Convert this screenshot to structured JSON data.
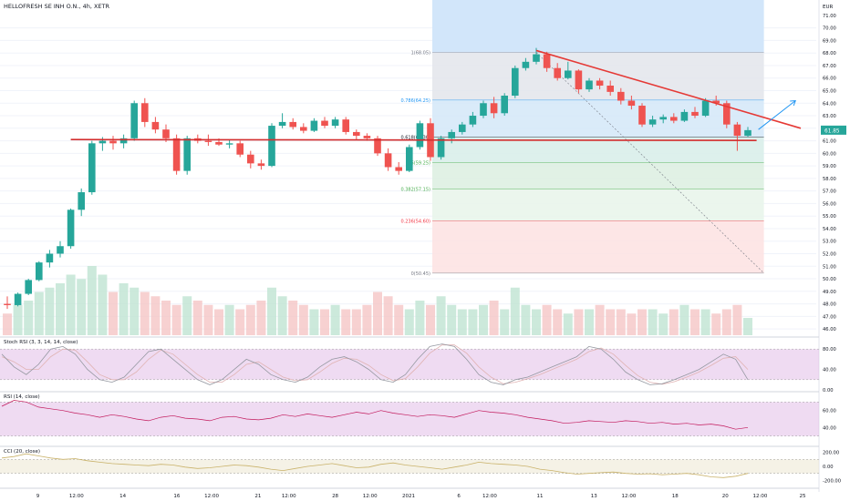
{
  "header": {
    "symbol_title": "HELLOFRESH SE INH O.N., 4h, XETR",
    "currency": "EUR"
  },
  "price_axis": {
    "labels": [
      "71.00",
      "70.00",
      "69.00",
      "68.00",
      "67.00",
      "66.00",
      "65.00",
      "64.00",
      "63.00",
      "62.00",
      "61.00",
      "60.00",
      "59.00",
      "58.00",
      "57.00",
      "56.00",
      "55.00",
      "54.00",
      "53.00",
      "52.00",
      "51.00",
      "50.00",
      "49.00",
      "48.00",
      "47.00",
      "46.00"
    ],
    "current_price": "61.85"
  },
  "fibonacci": {
    "levels": [
      {
        "label": "1(68.05)",
        "price": 68.05,
        "color": "#787b86"
      },
      {
        "label": "0.786(64.25)",
        "price": 64.25,
        "color": "#2196f3"
      },
      {
        "label": "0.618(61.30)",
        "price": 61.3,
        "color": "#131722"
      },
      {
        "label": "0.5(59.25)",
        "price": 59.25,
        "color": "#4caf50"
      },
      {
        "label": "0.382(57.15)",
        "price": 57.15,
        "color": "#4caf50"
      },
      {
        "label": "0.236(54.60)",
        "price": 54.6,
        "color": "#f23645"
      },
      {
        "label": "0(50.45)",
        "price": 50.45,
        "color": "#787b86"
      }
    ]
  },
  "candles": [
    [
      48.0,
      48.6,
      47.6,
      47.9
    ],
    [
      47.9,
      48.9,
      47.8,
      48.8
    ],
    [
      48.8,
      50.0,
      48.7,
      49.9
    ],
    [
      49.9,
      51.4,
      49.8,
      51.3
    ],
    [
      51.3,
      52.3,
      50.9,
      52.0
    ],
    [
      52.0,
      53.0,
      51.7,
      52.6
    ],
    [
      52.6,
      55.6,
      52.4,
      55.5
    ],
    [
      55.5,
      57.2,
      55.0,
      56.9
    ],
    [
      56.9,
      61.0,
      56.7,
      60.8
    ],
    [
      60.8,
      61.3,
      60.2,
      61.0
    ],
    [
      61.0,
      61.4,
      60.3,
      60.8
    ],
    [
      60.8,
      61.5,
      60.4,
      61.2
    ],
    [
      61.2,
      64.2,
      61.0,
      64.0
    ],
    [
      64.0,
      64.4,
      62.1,
      62.5
    ],
    [
      62.5,
      62.9,
      61.6,
      61.9
    ],
    [
      61.9,
      62.3,
      60.9,
      61.2
    ],
    [
      61.2,
      61.5,
      58.3,
      58.6
    ],
    [
      58.6,
      61.4,
      58.3,
      61.2
    ],
    [
      61.2,
      61.5,
      60.8,
      61.0
    ],
    [
      61.0,
      61.5,
      60.6,
      60.9
    ],
    [
      60.9,
      61.2,
      60.6,
      60.7
    ],
    [
      60.7,
      61.1,
      60.4,
      60.8
    ],
    [
      60.8,
      61.0,
      59.7,
      59.9
    ],
    [
      59.9,
      60.2,
      58.8,
      59.2
    ],
    [
      59.2,
      59.5,
      58.7,
      59.0
    ],
    [
      59.0,
      62.4,
      58.9,
      62.2
    ],
    [
      62.2,
      63.2,
      62.0,
      62.5
    ],
    [
      62.5,
      62.8,
      61.9,
      62.1
    ],
    [
      62.1,
      62.4,
      61.6,
      61.8
    ],
    [
      61.8,
      62.8,
      61.7,
      62.6
    ],
    [
      62.6,
      62.9,
      62.0,
      62.2
    ],
    [
      62.2,
      62.9,
      62.0,
      62.7
    ],
    [
      62.7,
      62.9,
      61.5,
      61.7
    ],
    [
      61.7,
      61.9,
      61.1,
      61.4
    ],
    [
      61.4,
      61.6,
      61.0,
      61.2
    ],
    [
      61.2,
      61.4,
      59.8,
      60.0
    ],
    [
      60.0,
      60.4,
      58.6,
      58.9
    ],
    [
      58.9,
      59.3,
      58.3,
      58.6
    ],
    [
      58.6,
      60.7,
      58.5,
      60.5
    ],
    [
      60.5,
      62.6,
      60.3,
      62.4
    ],
    [
      62.4,
      62.8,
      59.4,
      59.7
    ],
    [
      59.7,
      61.4,
      59.5,
      61.2
    ],
    [
      61.2,
      61.9,
      60.8,
      61.7
    ],
    [
      61.7,
      62.5,
      61.5,
      62.3
    ],
    [
      62.3,
      63.3,
      62.1,
      63.0
    ],
    [
      63.0,
      64.2,
      62.8,
      64.0
    ],
    [
      64.0,
      64.5,
      62.8,
      63.2
    ],
    [
      63.2,
      64.8,
      63.0,
      64.6
    ],
    [
      64.6,
      67.0,
      64.4,
      66.8
    ],
    [
      66.8,
      67.6,
      66.6,
      67.3
    ],
    [
      67.3,
      68.4,
      67.1,
      67.9
    ],
    [
      67.9,
      68.1,
      66.5,
      66.8
    ],
    [
      66.8,
      67.2,
      65.8,
      66.0
    ],
    [
      66.0,
      67.3,
      65.9,
      66.6
    ],
    [
      66.6,
      66.7,
      64.8,
      65.1
    ],
    [
      65.1,
      66.0,
      64.9,
      65.8
    ],
    [
      65.8,
      66.0,
      65.1,
      65.4
    ],
    [
      65.4,
      65.8,
      64.6,
      64.9
    ],
    [
      64.9,
      65.2,
      63.9,
      64.2
    ],
    [
      64.2,
      64.6,
      63.5,
      63.8
    ],
    [
      63.8,
      64.0,
      62.1,
      62.3
    ],
    [
      62.3,
      63.0,
      62.1,
      62.7
    ],
    [
      62.7,
      63.1,
      62.4,
      62.9
    ],
    [
      62.9,
      63.2,
      62.4,
      62.6
    ],
    [
      62.6,
      63.5,
      62.5,
      63.3
    ],
    [
      63.3,
      63.7,
      62.8,
      63.0
    ],
    [
      63.0,
      64.4,
      62.9,
      64.2
    ],
    [
      64.2,
      64.6,
      63.8,
      64.0
    ],
    [
      64.0,
      64.2,
      62.0,
      62.3
    ],
    [
      62.3,
      62.5,
      60.2,
      61.4
    ],
    [
      61.4,
      62.1,
      61.3,
      61.85
    ]
  ],
  "volume_strength": [
    0.25,
    0.35,
    0.4,
    0.5,
    0.55,
    0.6,
    0.7,
    0.65,
    0.8,
    0.7,
    0.5,
    0.6,
    0.55,
    0.5,
    0.45,
    0.4,
    0.35,
    0.45,
    0.4,
    0.35,
    0.3,
    0.35,
    0.3,
    0.35,
    0.4,
    0.55,
    0.45,
    0.4,
    0.35,
    0.3,
    0.3,
    0.35,
    0.3,
    0.3,
    0.35,
    0.5,
    0.45,
    0.35,
    0.3,
    0.4,
    0.35,
    0.45,
    0.35,
    0.3,
    0.3,
    0.35,
    0.4,
    0.3,
    0.55,
    0.35,
    0.3,
    0.35,
    0.3,
    0.25,
    0.3,
    0.3,
    0.35,
    0.3,
    0.3,
    0.25,
    0.3,
    0.3,
    0.25,
    0.3,
    0.35,
    0.3,
    0.3,
    0.25,
    0.3,
    0.35,
    0.2
  ],
  "trend_line": {
    "from": {
      "candle": 50,
      "price": 68.2
    },
    "to": {
      "candle": 75,
      "price": 62.0
    }
  },
  "support_line_price": 61.1,
  "indicators": {
    "stoch_rsi": {
      "title": "Stoch RSI (3, 3, 14, 14, close)",
      "axis": [
        "80.00",
        "40.00",
        "0.00"
      ],
      "band": [
        20,
        80
      ],
      "range": [
        0,
        100
      ],
      "k": [
        70,
        45,
        30,
        50,
        80,
        85,
        70,
        40,
        20,
        15,
        25,
        50,
        75,
        80,
        60,
        40,
        20,
        10,
        20,
        40,
        60,
        50,
        30,
        20,
        15,
        25,
        45,
        60,
        65,
        55,
        40,
        20,
        15,
        30,
        60,
        85,
        90,
        85,
        60,
        30,
        15,
        10,
        20,
        25,
        35,
        45,
        55,
        65,
        85,
        80,
        60,
        35,
        20,
        10,
        12,
        20,
        30,
        40,
        55,
        70,
        60,
        20
      ],
      "d": [
        65,
        55,
        40,
        40,
        65,
        80,
        78,
        55,
        30,
        20,
        20,
        35,
        60,
        78,
        70,
        50,
        30,
        15,
        15,
        30,
        50,
        55,
        40,
        25,
        18,
        20,
        35,
        52,
        62,
        60,
        48,
        30,
        18,
        22,
        45,
        72,
        88,
        88,
        72,
        45,
        25,
        12,
        15,
        22,
        30,
        40,
        50,
        60,
        75,
        82,
        70,
        48,
        28,
        15,
        11,
        16,
        25,
        35,
        48,
        62,
        65,
        40
      ]
    },
    "rsi": {
      "title": "RSI (14, close)",
      "axis": [
        "60.00",
        "40.00"
      ],
      "band": [
        30,
        70
      ],
      "range": [
        20,
        80
      ],
      "values": [
        65,
        72,
        70,
        64,
        62,
        60,
        57,
        55,
        52,
        55,
        53,
        50,
        48,
        52,
        54,
        51,
        50,
        48,
        52,
        53,
        50,
        49,
        51,
        55,
        53,
        56,
        54,
        52,
        55,
        58,
        56,
        60,
        57,
        55,
        53,
        55,
        54,
        52,
        56,
        60,
        58,
        57,
        55,
        52,
        50,
        48,
        45,
        46,
        48,
        47,
        46,
        48,
        47,
        45,
        46,
        44,
        45,
        43,
        44,
        42,
        38,
        40
      ]
    },
    "cci": {
      "title": "CCI (20, close)",
      "axis": [
        "200.00",
        "0.00",
        "-200.00"
      ],
      "band": [
        -100,
        100
      ],
      "range": [
        -260,
        260
      ],
      "values": [
        120,
        140,
        180,
        150,
        120,
        100,
        110,
        80,
        60,
        40,
        30,
        20,
        10,
        30,
        20,
        -10,
        -30,
        -20,
        0,
        20,
        10,
        -10,
        -40,
        -60,
        -30,
        0,
        20,
        40,
        10,
        -20,
        -10,
        30,
        50,
        20,
        0,
        -20,
        -40,
        -10,
        20,
        60,
        40,
        30,
        20,
        0,
        -40,
        -60,
        -90,
        -110,
        -100,
        -90,
        -80,
        -100,
        -110,
        -105,
        -120,
        -110,
        -100,
        -120,
        -150,
        -160,
        -140,
        -100
      ]
    }
  },
  "time_axis": {
    "labels": [
      {
        "text": "9",
        "frac": 0.01
      },
      {
        "text": "12:00",
        "frac": 0.06
      },
      {
        "text": "14",
        "frac": 0.12
      },
      {
        "text": "16",
        "frac": 0.19
      },
      {
        "text": "12:00",
        "frac": 0.235
      },
      {
        "text": "21",
        "frac": 0.295
      },
      {
        "text": "12:00",
        "frac": 0.335
      },
      {
        "text": "28",
        "frac": 0.395
      },
      {
        "text": "12:00",
        "frac": 0.44
      },
      {
        "text": "2021",
        "frac": 0.49
      },
      {
        "text": "6",
        "frac": 0.555
      },
      {
        "text": "12:00",
        "frac": 0.595
      },
      {
        "text": "11",
        "frac": 0.66
      },
      {
        "text": "13",
        "frac": 0.73
      },
      {
        "text": "12:00",
        "frac": 0.775
      },
      {
        "text": "18",
        "frac": 0.835
      },
      {
        "text": "20",
        "frac": 0.9
      },
      {
        "text": "12:00",
        "frac": 0.945
      },
      {
        "text": "25",
        "frac": 1.0
      }
    ]
  },
  "colors": {
    "up": "#26a69a",
    "down": "#ef5350",
    "trend_line": "#e53935",
    "support_line": "#d32f2f",
    "arrow": "#2196f3",
    "stoch_k": "#9598a1",
    "stoch_d": "#e0b3b3",
    "osc_band": "#e1bee7",
    "rsi_line": "#c2185b",
    "cci_line": "#c9b26a"
  }
}
